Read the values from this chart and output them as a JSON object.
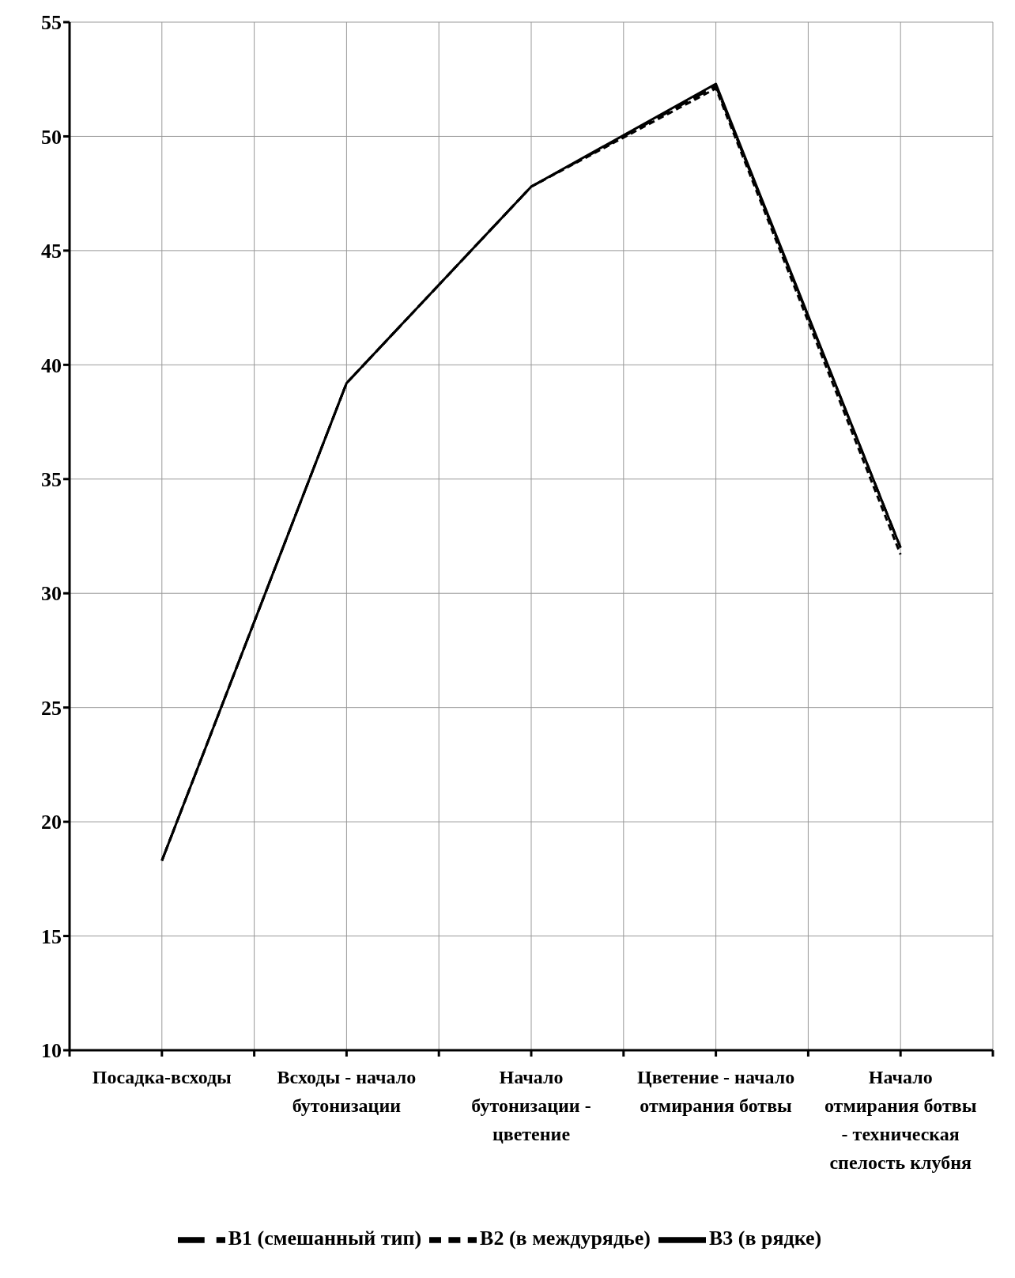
{
  "chart_data": {
    "type": "line",
    "categories": [
      "Посадка-всходы",
      "Всходы - начало бутонизации",
      "Начало бутонизации - цветение",
      "Цветение - начало отмирания ботвы",
      "Начало отмирания ботвы - техническая спелость клубня"
    ],
    "series": [
      {
        "name": "В1 (смешанный тип)",
        "color": "#000000",
        "line_style": "dashed",
        "values": [
          18.3,
          39.2,
          47.8,
          52.2,
          32.0
        ]
      },
      {
        "name": "В2 (в междурядье)",
        "color": "#000000",
        "line_style": "dotted",
        "values": [
          18.3,
          39.2,
          47.8,
          52.1,
          31.7
        ]
      },
      {
        "name": "В3 (в рядке)",
        "color": "#000000",
        "line_style": "solid",
        "values": [
          18.3,
          39.2,
          47.8,
          52.3,
          32.0
        ]
      }
    ],
    "ylim": [
      10,
      55
    ],
    "yticks": [
      10,
      15,
      20,
      25,
      30,
      35,
      40,
      45,
      50,
      55
    ],
    "grid": true,
    "legend": "bottom",
    "marker": "none"
  }
}
